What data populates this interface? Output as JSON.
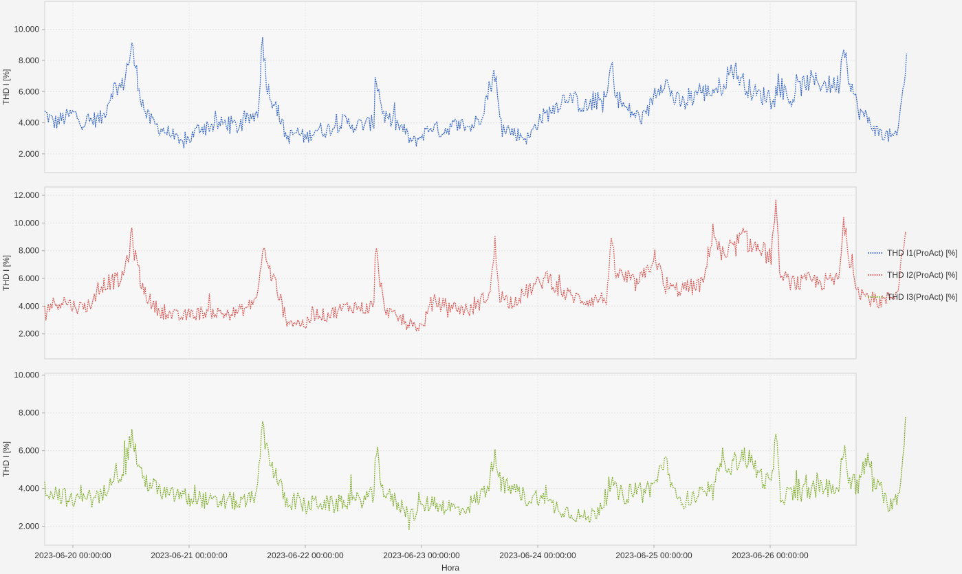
{
  "chart_data": {
    "type": "line",
    "x_axis": {
      "label": "Hora",
      "tick_labels": [
        "2023-06-20 00:00:00",
        "2023-06-21 00:00:00",
        "2023-06-22 00:00:00",
        "2023-06-23 00:00:00",
        "2023-06-24 00:00:00",
        "2023-06-25 00:00:00",
        "2023-06-26 00:00:00"
      ],
      "range": [
        "2023-06-19 18:30",
        "2023-06-26 23:59"
      ]
    },
    "grid": true,
    "legend_placement": "right",
    "panels": [
      {
        "ylabel": "THD I [%]",
        "yrange": [
          0.8,
          11.8
        ],
        "yticks": [
          "2.000",
          "4.000",
          "6.000",
          "8.000",
          "10.000"
        ],
        "series": {
          "name": "THD I1(ProAct) [%]",
          "color": "#3465c8",
          "x_hours": [
            0,
            2,
            4,
            6,
            8,
            10,
            12,
            14,
            16,
            18,
            20,
            21,
            22,
            24,
            26,
            28,
            30,
            32,
            34,
            36,
            38,
            40,
            42,
            44,
            45,
            46,
            48,
            50,
            52,
            54,
            56,
            58,
            60,
            62,
            64,
            66,
            68,
            68.2,
            70,
            72,
            74,
            76,
            78,
            80,
            82,
            84,
            86,
            88,
            90,
            92,
            93,
            94,
            96,
            98,
            100,
            102,
            104,
            106,
            108,
            110,
            112,
            114,
            116,
            117,
            118,
            120,
            122,
            124,
            126,
            128,
            130,
            132,
            134,
            135,
            136,
            138,
            140,
            142,
            144,
            146,
            148,
            150,
            152,
            154,
            156,
            158,
            160,
            162,
            164,
            165,
            166,
            168,
            170,
            172,
            174,
            176,
            178
          ],
          "values": [
            4.6,
            4.0,
            4.3,
            4.6,
            4.0,
            4.2,
            4.3,
            6.2,
            6.3,
            8.8,
            5.5,
            4.5,
            4.1,
            3.6,
            3.3,
            2.6,
            3.0,
            3.7,
            3.8,
            3.9,
            4.0,
            3.7,
            4.2,
            4.6,
            9.5,
            6.2,
            4.9,
            3.0,
            3.4,
            3.0,
            3.6,
            3.5,
            3.8,
            4.1,
            3.8,
            3.9,
            4.0,
            7.2,
            4.5,
            4.0,
            3.6,
            2.7,
            3.2,
            3.8,
            3.4,
            3.8,
            3.9,
            3.7,
            4.4,
            6.4,
            7.3,
            4.1,
            3.5,
            3.2,
            3.0,
            4.2,
            4.6,
            5.2,
            5.8,
            5.3,
            5.0,
            5.4,
            5.5,
            7.8,
            5.8,
            4.9,
            4.5,
            4.2,
            6.0,
            6.8,
            5.5,
            5.2,
            5.7,
            6.2,
            5.9,
            6.1,
            6.4,
            7.6,
            6.7,
            6.0,
            5.7,
            5.8,
            6.3,
            5.4,
            6.3,
            6.7,
            6.6,
            6.4,
            6.5,
            9.2,
            7.2,
            4.8,
            4.2,
            3.4,
            3.2,
            3.0,
            8.0
          ]
        }
      },
      {
        "ylabel": "THD I [%]",
        "yrange": [
          0.2,
          12.6
        ],
        "yticks": [
          "2.000",
          "4.000",
          "6.000",
          "8.000",
          "10.000",
          "12.000"
        ],
        "series": {
          "name": "THD I2(ProAct) [%]",
          "color": "#d9534f",
          "x_hours": [
            0,
            2,
            4,
            6,
            8,
            10,
            12,
            14,
            16,
            18,
            20,
            22,
            24,
            26,
            28,
            30,
            32,
            34,
            36,
            38,
            40,
            42,
            44,
            45,
            46,
            48,
            50,
            52,
            54,
            56,
            58,
            60,
            62,
            64,
            66,
            68,
            68.3,
            70,
            72,
            74,
            76,
            78,
            80,
            82,
            84,
            86,
            88,
            90,
            92,
            93,
            94,
            96,
            98,
            100,
            102,
            104,
            106,
            108,
            110,
            112,
            114,
            116,
            117,
            118,
            120,
            122,
            124,
            126,
            128,
            130,
            132,
            134,
            135,
            136,
            138,
            140,
            142,
            144,
            146,
            148,
            150,
            151,
            152,
            154,
            156,
            158,
            160,
            162,
            164,
            165,
            166,
            168,
            170,
            172,
            174,
            176,
            178
          ],
          "values": [
            3.8,
            4.2,
            4.4,
            4.0,
            3.9,
            4.3,
            5.6,
            5.8,
            5.9,
            8.9,
            5.5,
            4.2,
            3.6,
            3.4,
            3.2,
            3.4,
            3.5,
            3.6,
            3.5,
            3.4,
            3.6,
            3.9,
            4.8,
            8.2,
            7.0,
            5.2,
            3.0,
            2.8,
            2.7,
            3.5,
            3.3,
            3.6,
            3.9,
            4.0,
            3.8,
            4.1,
            8.3,
            4.0,
            3.3,
            3.0,
            2.6,
            2.5,
            4.4,
            4.1,
            4.0,
            3.8,
            3.7,
            4.3,
            5.0,
            8.4,
            4.8,
            4.3,
            4.6,
            5.2,
            5.6,
            6.2,
            5.2,
            4.8,
            4.6,
            4.4,
            4.5,
            4.6,
            8.2,
            6.4,
            6.0,
            5.6,
            6.2,
            7.8,
            5.3,
            5.2,
            5.3,
            5.4,
            5.5,
            5.6,
            9.6,
            7.2,
            8.0,
            9.0,
            8.4,
            8.0,
            7.6,
            10.6,
            6.0,
            5.8,
            5.6,
            5.9,
            5.7,
            5.8,
            5.9,
            9.9,
            7.8,
            5.2,
            4.6,
            4.3,
            4.5,
            5.0,
            9.8
          ]
        }
      },
      {
        "ylabel": "THD I [%]",
        "yrange": [
          1.0,
          10.1
        ],
        "yticks": [
          "2.000",
          "4.000",
          "6.000",
          "8.000",
          "10.000"
        ],
        "series": {
          "name": "THD I3(ProAct) [%]",
          "color": "#7fad2a",
          "x_hours": [
            0,
            2,
            4,
            6,
            8,
            10,
            12,
            14,
            16,
            18,
            20,
            22,
            24,
            26,
            28,
            30,
            32,
            34,
            36,
            38,
            40,
            42,
            44,
            45,
            46,
            48,
            50,
            52,
            54,
            56,
            58,
            60,
            62,
            64,
            66,
            68,
            68.3,
            70,
            72,
            74,
            76,
            78,
            80,
            82,
            84,
            86,
            88,
            90,
            92,
            93,
            94,
            96,
            98,
            100,
            102,
            104,
            106,
            108,
            110,
            112,
            114,
            116,
            117,
            118,
            120,
            122,
            124,
            126,
            128,
            130,
            132,
            134,
            135,
            136,
            138,
            140,
            142,
            144,
            146,
            148,
            150,
            151,
            152,
            154,
            156,
            158,
            160,
            162,
            164,
            165,
            166,
            168,
            170,
            172,
            174,
            176,
            177,
            178
          ],
          "values": [
            4.0,
            3.8,
            3.6,
            3.2,
            3.9,
            3.3,
            3.6,
            4.9,
            4.8,
            6.8,
            4.6,
            4.2,
            3.8,
            3.6,
            3.7,
            3.4,
            3.5,
            3.3,
            3.2,
            3.4,
            3.2,
            3.3,
            3.9,
            7.4,
            6.0,
            4.5,
            3.2,
            3.4,
            3.0,
            3.3,
            3.2,
            3.1,
            3.4,
            3.3,
            3.5,
            3.6,
            6.4,
            3.8,
            3.4,
            3.0,
            2.6,
            3.0,
            3.3,
            3.1,
            3.0,
            2.8,
            3.2,
            3.6,
            4.4,
            6.3,
            4.2,
            4.0,
            3.8,
            3.4,
            3.6,
            3.2,
            3.0,
            2.8,
            2.6,
            2.4,
            2.8,
            3.6,
            4.3,
            3.8,
            3.6,
            4.0,
            3.9,
            4.2,
            5.6,
            3.6,
            3.4,
            3.5,
            3.6,
            3.7,
            3.8,
            5.6,
            5.2,
            5.8,
            5.4,
            4.6,
            4.2,
            6.6,
            3.6,
            3.7,
            3.8,
            3.9,
            4.0,
            4.1,
            4.0,
            6.2,
            4.6,
            4.2,
            5.6,
            4.0,
            3.2,
            3.4,
            5.0,
            8.4
          ]
        }
      }
    ]
  }
}
